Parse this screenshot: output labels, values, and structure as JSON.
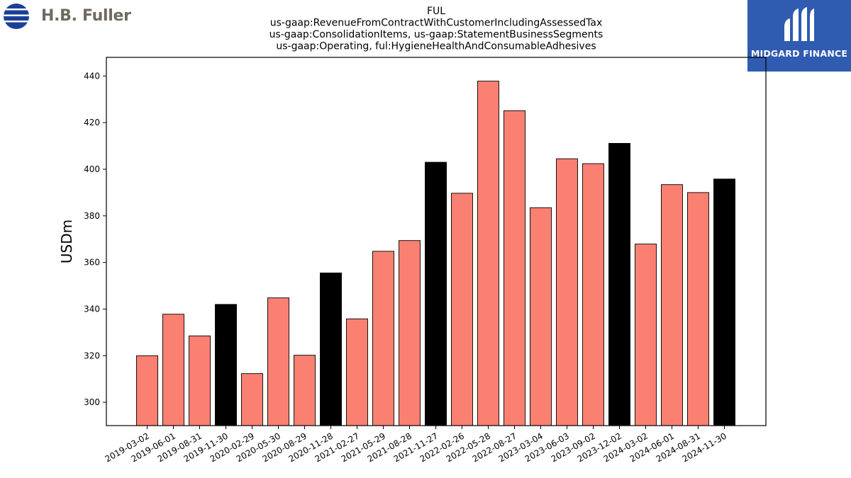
{
  "logos": {
    "left_text": "H.B. Fuller",
    "right_text": "MIDGARD FINANCE"
  },
  "chart_data": {
    "type": "bar",
    "title_lines": [
      "FUL",
      "us-gaap:RevenueFromContractWithCustomerIncludingAssessedTax",
      "us-gaap:ConsolidationItems, us-gaap:StatementBusinessSegments",
      "us-gaap:Operating, ful:HygieneHealthAndConsumableAdhesives"
    ],
    "ylabel": "USDm",
    "xlabel": "",
    "ylim": [
      290,
      448
    ],
    "yticks": [
      300,
      320,
      340,
      360,
      380,
      400,
      420,
      440
    ],
    "categories": [
      "2019-03-02",
      "2019-06-01",
      "2019-08-31",
      "2019-11-30",
      "2020-02-29",
      "2020-05-30",
      "2020-08-29",
      "2020-11-28",
      "2021-02-27",
      "2021-05-29",
      "2021-08-28",
      "2021-11-27",
      "2022-02-26",
      "2022-05-28",
      "2022-08-27",
      "2023-03-04",
      "2023-06-03",
      "2023-09-02",
      "2023-12-02",
      "2024-03-02",
      "2024-06-01",
      "2024-08-31",
      "2024-11-30"
    ],
    "values": [
      320.0,
      337.8,
      328.5,
      342.0,
      312.3,
      344.8,
      320.2,
      355.5,
      335.8,
      364.8,
      369.4,
      403.0,
      389.7,
      437.8,
      425.1,
      383.5,
      404.5,
      402.4,
      411.1,
      367.9,
      393.4,
      390.0,
      395.8
    ],
    "highlight": [
      false,
      false,
      false,
      true,
      false,
      false,
      false,
      true,
      false,
      false,
      false,
      true,
      false,
      false,
      false,
      false,
      false,
      false,
      true,
      false,
      false,
      false,
      true
    ],
    "colors": {
      "quarter_bar": "#fa8072",
      "year_end_bar": "#000000",
      "logo_blue": "#2f5bb0",
      "fuller_blue": "#1b3f97"
    }
  }
}
